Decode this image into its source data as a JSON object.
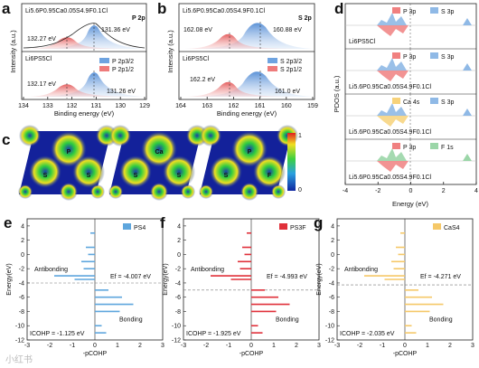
{
  "panels": {
    "a": {
      "letter": "a",
      "xlabel": "Binding energy (eV)",
      "ylabel": "Intensity (a.u.)",
      "xticks": [
        "134",
        "133",
        "132",
        "131",
        "130",
        "129"
      ],
      "top_title": "Li5.6P0.95Ca0.05S4.9F0.1Cl",
      "top_tag": "P 2p",
      "top_peaks": [
        "131.36 eV",
        "132.27 eV"
      ],
      "bot_title": "Li6PS5Cl",
      "bot_peaks": [
        "132.17 eV",
        "131.26 eV"
      ],
      "legend": [
        "P 2p3/2",
        "P 2p1/2"
      ]
    },
    "b": {
      "letter": "b",
      "xlabel": "Binding energy (eV)",
      "ylabel": "Intensity (a.u.)",
      "xticks": [
        "164",
        "163",
        "162",
        "161",
        "160",
        "159"
      ],
      "top_title": "Li5.6P0.95Ca0.05S4.9F0.1Cl",
      "top_tag": "S 2p",
      "top_peaks": [
        "162.08 eV",
        "160.88 eV"
      ],
      "bot_title": "Li6PS5Cl",
      "bot_peaks": [
        "162.2 eV",
        "161.0 eV"
      ],
      "legend": [
        "S 2p3/2",
        "S 2p1/2"
      ]
    },
    "c": {
      "letter": "c",
      "atoms1": [
        "P",
        "S",
        "S"
      ],
      "atoms2": [
        "Ca",
        "S",
        "S"
      ],
      "atoms3": [
        "P",
        "S",
        "F"
      ],
      "cbar_max": "1",
      "cbar_min": "0"
    },
    "d": {
      "letter": "d",
      "xlabel": "Energy (eV)",
      "ylabel": "PDOS (a.u.)",
      "xticks": [
        "-4",
        "-2",
        "0",
        "2",
        "4"
      ],
      "rows": [
        {
          "legend": [
            "P 3p",
            "S 3p"
          ],
          "label": "Li6PS5Cl"
        },
        {
          "legend": [
            "P 3p",
            "S 3p"
          ],
          "label": "Li5.6P0.95Ca0.05S4.9F0.1Cl"
        },
        {
          "legend": [
            "Ca 4s",
            "S 3p"
          ],
          "label": "Li5.6P0.95Ca0.05S4.9F0.1Cl"
        },
        {
          "legend": [
            "P 3p",
            "F 1s"
          ],
          "label": "Li5.6P0.95Ca0.05S4.9F0.1Cl"
        }
      ]
    }
  },
  "cohp": [
    {
      "letter": "e",
      "legend": "PS4",
      "ef": "Ef = -4.007 eV",
      "icohp": "ICOHP = -1.125 eV",
      "color": "#5ea6dd",
      "ef_value": -4.007
    },
    {
      "letter": "f",
      "legend": "PS3F",
      "ef": "Ef = -4.993 eV",
      "icohp": "ICOHP = -1.925 eV",
      "color": "#e0303a",
      "ef_value": -4.993
    },
    {
      "letter": "g",
      "legend": "CaS4",
      "ef": "Ef = -4.271 eV",
      "icohp": "ICOHP = -2.035 eV",
      "color": "#f5c868",
      "ef_value": -4.271
    }
  ],
  "cohp_common": {
    "ylabel": "Energy(eV)",
    "xlabel": "-pCOHP",
    "anti": "Antibonding",
    "bond": "Bonding",
    "yticks": [
      "4",
      "2",
      "0",
      "-2",
      "-4",
      "-6",
      "-8",
      "-10",
      "-12"
    ],
    "xticks": [
      "-3",
      "-2",
      "-1",
      "0",
      "1",
      "2",
      "3"
    ]
  },
  "watermark": "小红书",
  "chart_data": [
    {
      "type": "area",
      "title": "P 2p",
      "xlabel": "Binding energy (eV)",
      "ylabel": "Intensity (a.u.)",
      "xlim": [
        134,
        129
      ],
      "series": [
        {
          "name": "P 2p3/2",
          "peaks_eV": [
            131.36,
            131.26
          ]
        },
        {
          "name": "P 2p1/2",
          "peaks_eV": [
            132.27,
            132.17
          ]
        }
      ]
    },
    {
      "type": "area",
      "title": "S 2p",
      "xlabel": "Binding energy (eV)",
      "ylabel": "Intensity (a.u.)",
      "xlim": [
        164,
        159
      ],
      "series": [
        {
          "name": "S 2p3/2",
          "peaks_eV": [
            160.88,
            161.0
          ]
        },
        {
          "name": "S 2p1/2",
          "peaks_eV": [
            162.08,
            162.2
          ]
        }
      ]
    },
    {
      "type": "area",
      "xlabel": "Energy (eV)",
      "ylabel": "PDOS (a.u.)",
      "xlim": [
        -4,
        4
      ]
    },
    {
      "type": "area",
      "xlabel": "-pCOHP",
      "ylabel": "Energy(eV)",
      "xlim": [
        -3,
        3
      ],
      "ylim": [
        -12,
        5
      ],
      "series": [
        {
          "name": "PS4",
          "ef": -4.007,
          "icohp": -1.125
        },
        {
          "name": "PS3F",
          "ef": -4.993,
          "icohp": -1.925
        },
        {
          "name": "CaS4",
          "ef": -4.271,
          "icohp": -2.035
        }
      ]
    }
  ]
}
